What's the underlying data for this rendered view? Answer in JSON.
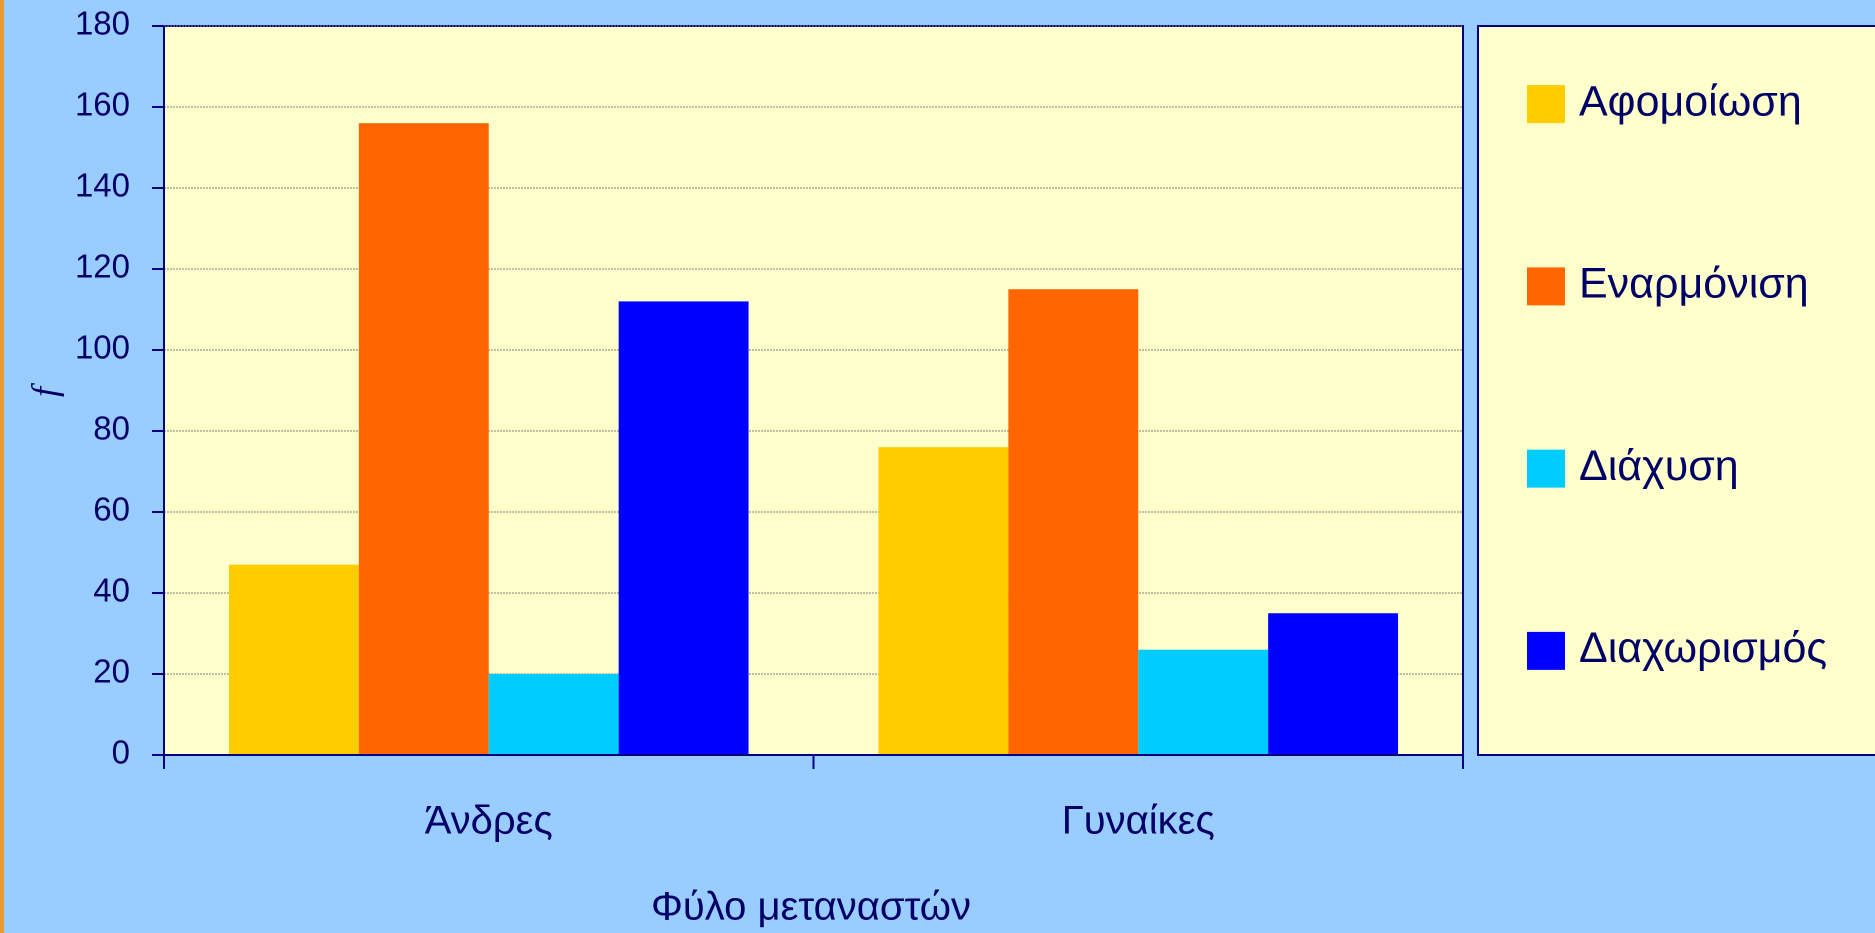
{
  "chart_data": {
    "type": "bar",
    "ylabel": "f",
    "xlabel": "Φύλο μεταναστών",
    "categories": [
      "Άνδρες",
      "Γυναίκες"
    ],
    "series": [
      {
        "name": "Αφομοίωση",
        "color": "#ffcc00",
        "values": [
          47,
          76
        ]
      },
      {
        "name": "Εναρμόνιση",
        "color": "#ff6600",
        "values": [
          156,
          115
        ]
      },
      {
        "name": "Διάχυση",
        "color": "#00ccff",
        "values": [
          20,
          26
        ]
      },
      {
        "name": "Διαχωρισμός",
        "color": "#0000ff",
        "values": [
          112,
          35
        ]
      }
    ],
    "ylim": [
      0,
      180
    ],
    "yticks": [
      0,
      20,
      40,
      60,
      80,
      100,
      120,
      140,
      160,
      180
    ],
    "grid": true
  }
}
